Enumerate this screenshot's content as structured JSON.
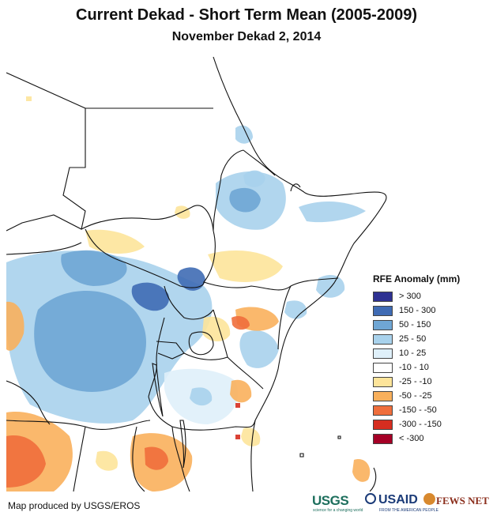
{
  "title": "Current Dekad - Short Term Mean (2005-2009)",
  "subtitle": "November Dekad 2, 2014",
  "legend": {
    "title": "RFE Anomaly (mm)",
    "items": [
      {
        "label": "> 300",
        "color": "#2e3192"
      },
      {
        "label": "150 - 300",
        "color": "#3f6bb4"
      },
      {
        "label": "50 - 150",
        "color": "#6fa6d4"
      },
      {
        "label": "25 - 50",
        "color": "#a9d2ec"
      },
      {
        "label": "10 - 25",
        "color": "#dff0fa"
      },
      {
        "label": "-10 - 10",
        "color": "#ffffff"
      },
      {
        "label": "-25 - -10",
        "color": "#fde49a"
      },
      {
        "label": "-50 - -25",
        "color": "#f9b05c"
      },
      {
        "label": "-150 - -50",
        "color": "#ef6e3c"
      },
      {
        "label": "-300 - -150",
        "color": "#d62d20"
      },
      {
        "label": "< -300",
        "color": "#a50026"
      }
    ]
  },
  "credit": "Map produced by USGS/EROS",
  "logos": {
    "usgs": "USGS",
    "usgs_tagline": "science for a changing world",
    "usaid": "USAID",
    "usaid_tagline": "FROM THE AMERICAN PEOPLE",
    "fews": "FEWS NET"
  }
}
